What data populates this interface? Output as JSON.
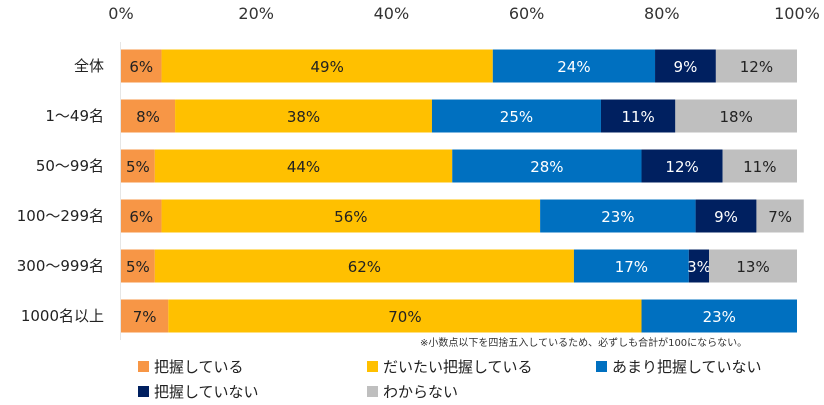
{
  "chart_data": {
    "type": "bar",
    "orientation": "horizontal",
    "stacked": true,
    "title": "",
    "xlabel": "",
    "ylabel": "",
    "xlim": [
      0,
      100
    ],
    "x_ticks": [
      "0%",
      "20%",
      "40%",
      "60%",
      "80%",
      "100%"
    ],
    "categories": [
      "全体",
      "1～49名",
      "50～99名",
      "100～299名",
      "300～999名",
      "1000名以上"
    ],
    "series": [
      {
        "name": "把握している",
        "color": "#F79646",
        "values": [
          6,
          8,
          5,
          6,
          5,
          7
        ]
      },
      {
        "name": "だいたい把握している",
        "color": "#FFC000",
        "values": [
          49,
          38,
          44,
          56,
          62,
          70
        ]
      },
      {
        "name": "あまり把握していない",
        "color": "#0070C0",
        "values": [
          24,
          25,
          28,
          23,
          17,
          23
        ]
      },
      {
        "name": "把握していない",
        "color": "#002060",
        "values": [
          9,
          11,
          12,
          9,
          3,
          0
        ]
      },
      {
        "name": "わからない",
        "color": "#BFBFBF",
        "values": [
          12,
          18,
          11,
          7,
          13,
          0
        ]
      }
    ],
    "label_colors": {
      "把握している": "#222222",
      "だいたい把握している": "#222222",
      "あまり把握していない": "#ffffff",
      "把握していない": "#ffffff",
      "わからない": "#222222"
    },
    "note": "※小数点以下を四捨五入しているため、必ずしも合計が100にならない。",
    "legend_position": "bottom",
    "grid": false
  }
}
